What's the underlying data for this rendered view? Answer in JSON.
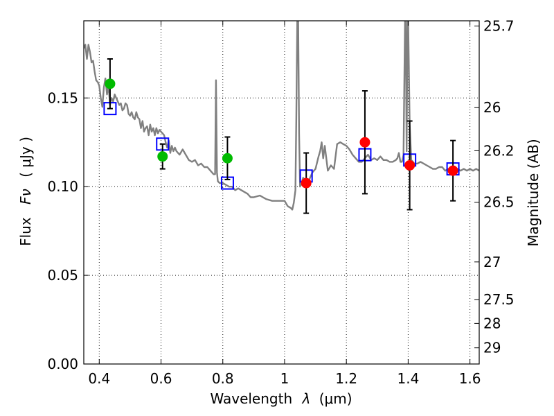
{
  "chart_data": {
    "type": "scatter",
    "xlabel_prefix": "Wavelength",
    "xlabel_symbol": "λ",
    "xlabel_units": "(μm)",
    "ylabel_prefix": "Flux",
    "ylabel_symbol": "Fν",
    "ylabel_units": "( μJy )",
    "y2label": "Magnitude (AB)",
    "xlim": [
      0.35,
      1.63
    ],
    "ylim": [
      0.0,
      0.1935
    ],
    "grid": true,
    "xticks": [
      0.4,
      0.6,
      0.8,
      1.0,
      1.2,
      1.4,
      1.6
    ],
    "xtick_labels": [
      "0.4",
      "0.6",
      "0.8",
      "1",
      "1.2",
      "1.4",
      "1.6"
    ],
    "yticks": [
      0.0,
      0.05,
      0.1,
      0.15
    ],
    "ytick_labels": [
      "0.00",
      "0.05",
      "0.10",
      "0.15"
    ],
    "mag_ticks": [
      {
        "mag": 25.7,
        "label": "25.7"
      },
      {
        "mag": 26.0,
        "label": "26"
      },
      {
        "mag": 26.2,
        "label": "26.2"
      },
      {
        "mag": 26.5,
        "label": "26.5"
      },
      {
        "mag": 27.0,
        "label": "27"
      },
      {
        "mag": 27.5,
        "label": "27.5"
      },
      {
        "mag": 28.0,
        "label": "28"
      },
      {
        "mag": 29.0,
        "label": "29"
      }
    ],
    "series": [
      {
        "name": "template-spectrum",
        "kind": "line",
        "color": "#808080",
        "x": [
          0.35,
          0.355,
          0.36,
          0.365,
          0.37,
          0.375,
          0.38,
          0.385,
          0.39,
          0.395,
          0.4,
          0.405,
          0.41,
          0.415,
          0.42,
          0.425,
          0.43,
          0.435,
          0.44,
          0.445,
          0.45,
          0.455,
          0.46,
          0.465,
          0.47,
          0.475,
          0.48,
          0.485,
          0.49,
          0.495,
          0.5,
          0.505,
          0.51,
          0.515,
          0.52,
          0.525,
          0.53,
          0.535,
          0.54,
          0.545,
          0.55,
          0.555,
          0.56,
          0.565,
          0.57,
          0.575,
          0.58,
          0.585,
          0.59,
          0.595,
          0.6,
          0.605,
          0.61,
          0.615,
          0.62,
          0.625,
          0.63,
          0.635,
          0.64,
          0.645,
          0.65,
          0.66,
          0.67,
          0.68,
          0.69,
          0.7,
          0.71,
          0.72,
          0.73,
          0.74,
          0.75,
          0.76,
          0.77,
          0.775,
          0.778,
          0.781,
          0.784,
          0.79,
          0.8,
          0.81,
          0.82,
          0.83,
          0.84,
          0.85,
          0.86,
          0.87,
          0.88,
          0.89,
          0.9,
          0.92,
          0.94,
          0.96,
          0.98,
          1.0,
          1.01,
          1.02,
          1.025,
          1.03,
          1.035,
          1.038,
          1.041,
          1.044,
          1.047,
          1.05,
          1.055,
          1.06,
          1.07,
          1.08,
          1.09,
          1.1,
          1.11,
          1.115,
          1.12,
          1.125,
          1.13,
          1.14,
          1.15,
          1.16,
          1.17,
          1.18,
          1.19,
          1.2,
          1.21,
          1.22,
          1.23,
          1.24,
          1.25,
          1.26,
          1.27,
          1.28,
          1.29,
          1.3,
          1.31,
          1.32,
          1.33,
          1.34,
          1.35,
          1.36,
          1.365,
          1.37,
          1.375,
          1.38,
          1.385,
          1.39,
          1.392,
          1.395,
          1.398,
          1.4,
          1.405,
          1.41,
          1.42,
          1.43,
          1.44,
          1.45,
          1.46,
          1.47,
          1.48,
          1.49,
          1.5,
          1.51,
          1.52,
          1.53,
          1.54,
          1.55,
          1.56,
          1.57,
          1.58,
          1.59,
          1.6,
          1.61,
          1.62,
          1.63
        ],
        "y": [
          0.178,
          0.18,
          0.172,
          0.18,
          0.176,
          0.17,
          0.171,
          0.165,
          0.16,
          0.159,
          0.157,
          0.15,
          0.145,
          0.156,
          0.161,
          0.152,
          0.157,
          0.146,
          0.15,
          0.148,
          0.152,
          0.15,
          0.148,
          0.146,
          0.147,
          0.143,
          0.144,
          0.147,
          0.146,
          0.141,
          0.14,
          0.142,
          0.139,
          0.138,
          0.142,
          0.139,
          0.138,
          0.133,
          0.137,
          0.131,
          0.133,
          0.134,
          0.129,
          0.135,
          0.131,
          0.133,
          0.129,
          0.133,
          0.13,
          0.132,
          0.131,
          0.13,
          0.129,
          0.125,
          0.122,
          0.126,
          0.119,
          0.123,
          0.12,
          0.122,
          0.12,
          0.118,
          0.121,
          0.118,
          0.115,
          0.114,
          0.115,
          0.112,
          0.113,
          0.111,
          0.111,
          0.109,
          0.107,
          0.107,
          0.16,
          0.108,
          0.103,
          0.102,
          0.102,
          0.101,
          0.1,
          0.1,
          0.098,
          0.099,
          0.098,
          0.097,
          0.096,
          0.094,
          0.094,
          0.095,
          0.093,
          0.092,
          0.092,
          0.092,
          0.089,
          0.088,
          0.087,
          0.091,
          0.098,
          0.14,
          0.195,
          0.195,
          0.13,
          0.1,
          0.102,
          0.105,
          0.103,
          0.104,
          0.108,
          0.11,
          0.117,
          0.12,
          0.125,
          0.116,
          0.123,
          0.109,
          0.112,
          0.11,
          0.124,
          0.125,
          0.124,
          0.123,
          0.121,
          0.118,
          0.116,
          0.114,
          0.114,
          0.116,
          0.118,
          0.115,
          0.116,
          0.115,
          0.117,
          0.115,
          0.115,
          0.114,
          0.114,
          0.115,
          0.116,
          0.119,
          0.114,
          0.114,
          0.118,
          0.195,
          0.195,
          0.12,
          0.195,
          0.195,
          0.135,
          0.115,
          0.113,
          0.113,
          0.114,
          0.113,
          0.112,
          0.111,
          0.11,
          0.11,
          0.111,
          0.111,
          0.109,
          0.11,
          0.109,
          0.109,
          0.11,
          0.109,
          0.11,
          0.109,
          0.11,
          0.109,
          0.11,
          0.109
        ]
      },
      {
        "name": "model-photometry",
        "kind": "open-square",
        "color": "#0000ff",
        "x": [
          0.435,
          0.605,
          0.815,
          1.07,
          1.26,
          1.405,
          1.545
        ],
        "y": [
          0.144,
          0.124,
          0.102,
          0.106,
          0.118,
          0.115,
          0.11
        ]
      },
      {
        "name": "observed-optical",
        "kind": "filled-circle",
        "color": "#00bb00",
        "x": [
          0.435,
          0.605,
          0.815
        ],
        "y": [
          0.158,
          0.117,
          0.116
        ],
        "yerr": [
          0.014,
          0.007,
          0.012
        ]
      },
      {
        "name": "observed-nir",
        "kind": "filled-circle",
        "color": "#ff0000",
        "x": [
          1.07,
          1.26,
          1.405,
          1.545
        ],
        "y": [
          0.102,
          0.125,
          0.112,
          0.109
        ],
        "yerr": [
          0.017,
          0.029,
          0.025,
          0.017
        ]
      }
    ]
  }
}
